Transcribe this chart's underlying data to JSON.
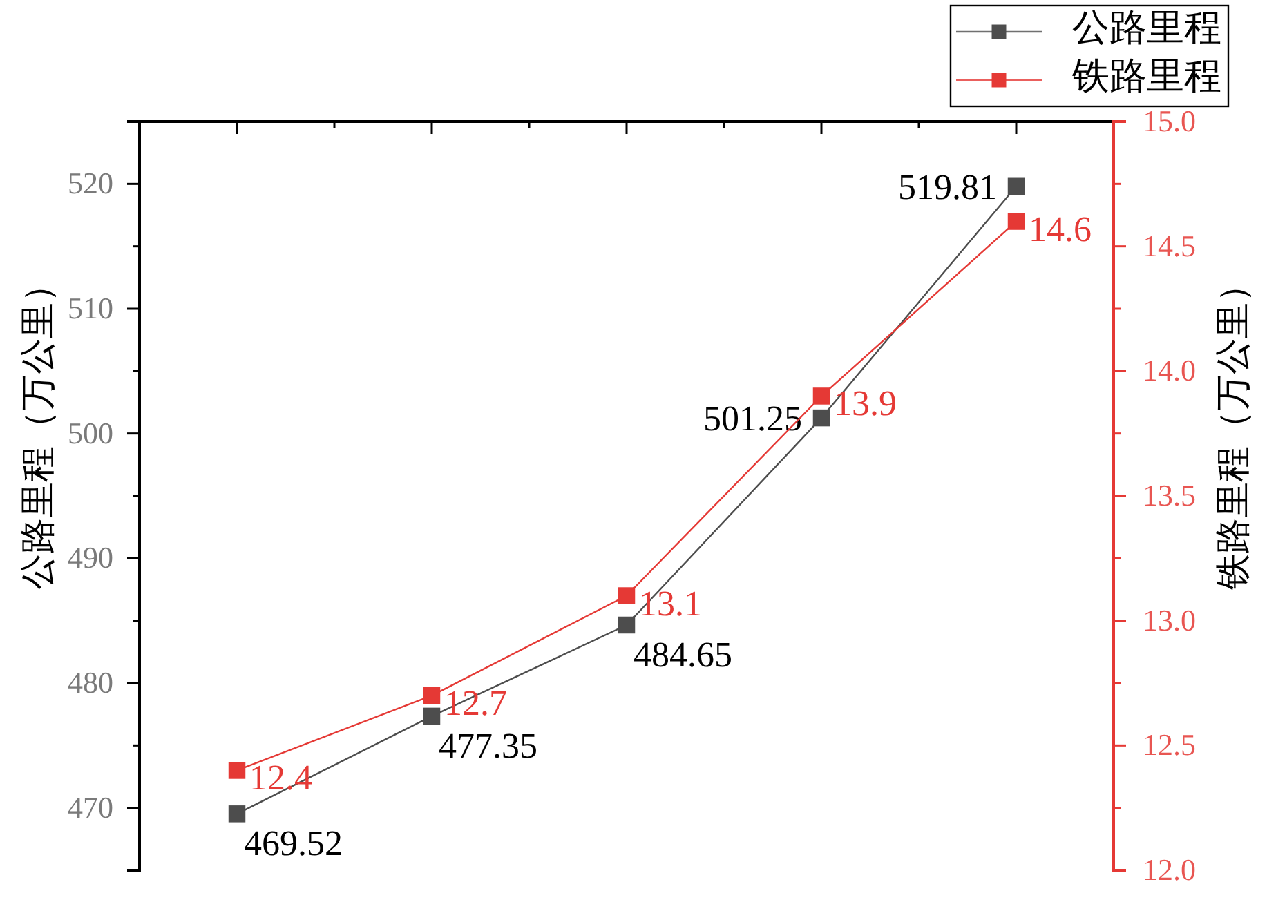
{
  "chart_data": {
    "type": "line",
    "ylabel": "公路里程（万公里）",
    "y2label": "铁路里程（万公里）",
    "categories": [
      null,
      null,
      null,
      null,
      null
    ],
    "series": [
      {
        "name": "公路里程",
        "color": "#4d4d4d",
        "values": [
          469.52,
          477.35,
          484.65,
          501.25,
          519.81
        ]
      },
      {
        "name": "铁路里程",
        "color": "#e53935",
        "values": [
          12.4,
          12.7,
          13.1,
          13.9,
          14.6
        ],
        "axis": "y2"
      }
    ],
    "ylim": [
      465,
      525
    ],
    "yticks": [
      470,
      {
        "value": 475,
        "label": null
      },
      480,
      {
        "value": 485,
        "label": null
      },
      490,
      {
        "value": 495,
        "label": null
      },
      500,
      {
        "value": 505,
        "label": null
      },
      510,
      {
        "value": 515,
        "label": null
      },
      520
    ],
    "y2lim": [
      12,
      15
    ],
    "y2ticks": [
      {
        "value": 12,
        "label": "12.0"
      },
      {
        "value": 12.25,
        "label": null
      },
      {
        "value": 12.5,
        "label": "12.5"
      },
      {
        "value": 12.75,
        "label": null
      },
      {
        "value": 13,
        "label": "13.0"
      },
      {
        "value": 13.25,
        "label": null
      },
      {
        "value": 13.5,
        "label": "13.5"
      },
      {
        "value": 13.75,
        "label": null
      },
      {
        "value": 14,
        "label": "14.0"
      },
      {
        "value": 14.25,
        "label": null
      },
      {
        "value": 14.5,
        "label": "14.5"
      },
      {
        "value": 14.75,
        "label": null
      },
      {
        "value": 15,
        "label": "15.0"
      }
    ],
    "marker": "square",
    "line_style": "solid",
    "data_labels": true,
    "legend": "top right"
  }
}
